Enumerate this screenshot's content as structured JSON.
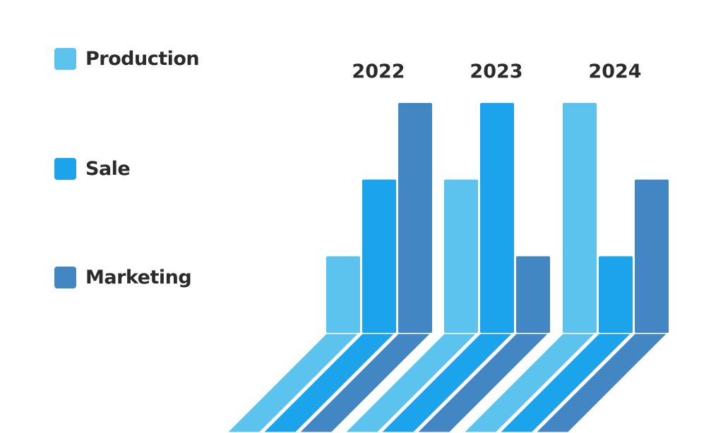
{
  "chart_data": {
    "type": "bar",
    "title": "",
    "xlabel": "",
    "ylabel": "",
    "categories": [
      "2022",
      "2023",
      "2024"
    ],
    "series": [
      {
        "name": "Production",
        "values": [
          1,
          2,
          3
        ]
      },
      {
        "name": "Sale",
        "values": [
          2,
          3,
          1
        ]
      },
      {
        "name": "Marketing",
        "values": [
          3,
          1,
          2
        ]
      }
    ],
    "ylim": [
      0,
      3
    ],
    "grid": false,
    "legend_position": "left",
    "colors": [
      "#5CC3EE",
      "#1BA4EC",
      "#4287C4"
    ]
  },
  "legend": {
    "items": [
      {
        "label": "Production",
        "color": "#5CC3EE"
      },
      {
        "label": "Sale",
        "color": "#1BA4EC"
      },
      {
        "label": "Marketing",
        "color": "#4287C4"
      }
    ]
  }
}
